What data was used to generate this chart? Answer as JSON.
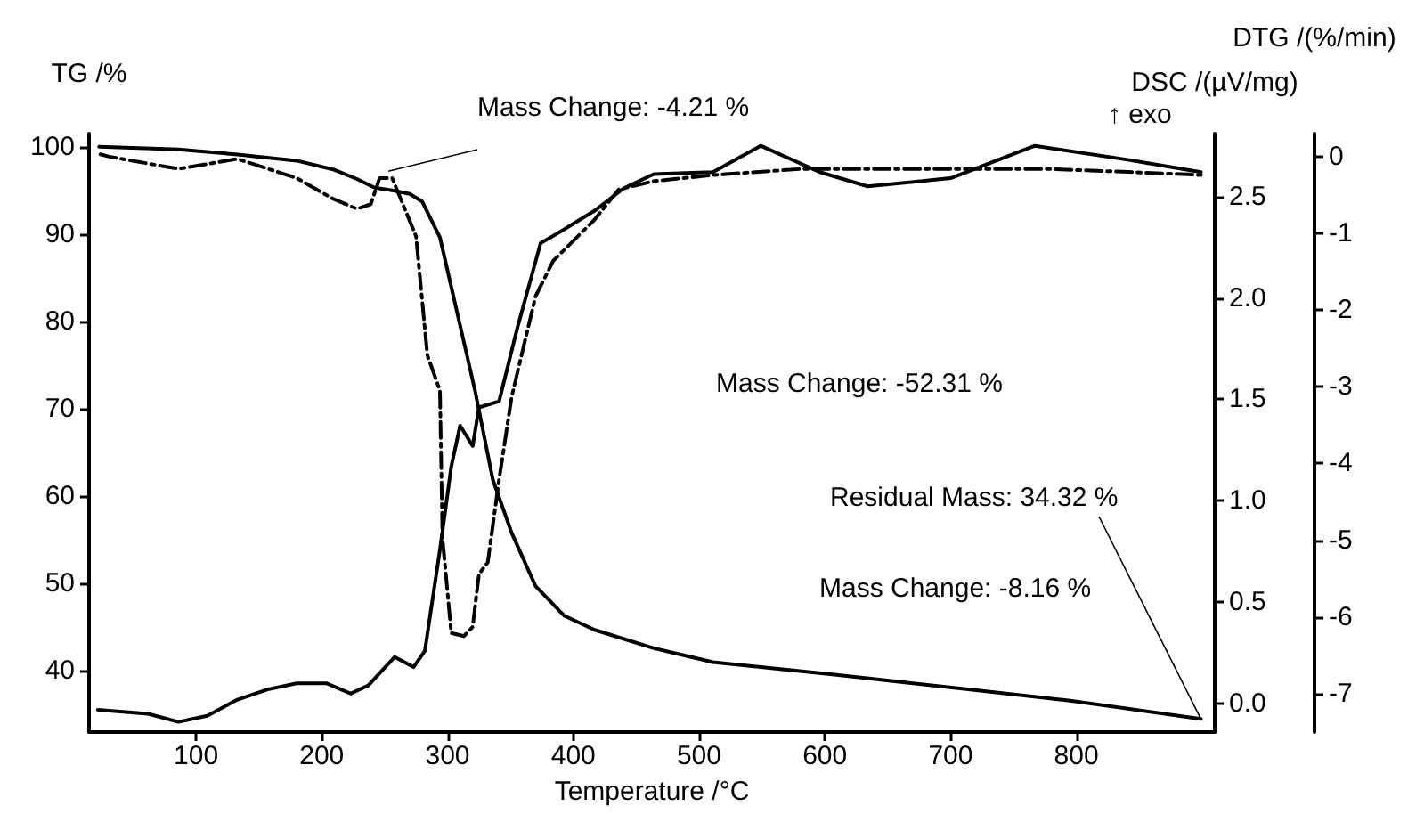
{
  "chart_data": {
    "type": "line",
    "xlabel": "Temperature /°C",
    "ylabel": "TG /%",
    "y2label": "DSC /(µV/mg)",
    "y3label": "DTG /(%/min)",
    "annotations": [
      {
        "text": "Mass Change: -4.21 %",
        "x": 253,
        "y": 97.2
      },
      "Mass Change: -52.31 %",
      {
        "text": "Residual Mass: 34.32 %",
        "x": 899,
        "y": 34.5
      },
      "Mass Change: -8.16 %",
      "↑ exo"
    ],
    "xlim": [
      15,
      910
    ],
    "xticks": [
      100,
      200,
      300,
      400,
      500,
      600,
      700,
      800
    ],
    "ylim": [
      33,
      101.5
    ],
    "yticks": [
      40,
      50,
      60,
      70,
      80,
      90,
      100
    ],
    "y2lim": [
      -0.14,
      2.81
    ],
    "y2ticks": [
      {
        "value": 0,
        "label": "0.0"
      },
      0.5,
      {
        "value": 1,
        "label": "1.0"
      },
      1.5,
      {
        "value": 2,
        "label": "2.0"
      },
      2.5
    ],
    "y3lim": [
      -7.5,
      0.3
    ],
    "y3ticks": [
      -7,
      -6,
      -5,
      -4,
      -3,
      -2,
      -1,
      0
    ],
    "series": [
      {
        "color": "#000000",
        "line_style": "solid",
        "x": [
          23,
          86,
          133,
          180,
          209,
          228,
          242,
          256,
          270,
          280,
          294,
          308,
          322,
          336,
          351,
          370,
          393,
          417,
          464,
          511,
          606,
          714,
          795,
          899
        ],
        "values": [
          100,
          99.7,
          99.1,
          98.4,
          97.4,
          96.3,
          95.3,
          95,
          94.6,
          93.7,
          89.6,
          80.8,
          72,
          61.9,
          55.8,
          49.7,
          46.3,
          44.7,
          42.6,
          41,
          39.6,
          37.9,
          36.6,
          34.5
        ]
      },
      {
        "color": "#000000",
        "line_style": "solid",
        "axis": "y2",
        "x": [
          22,
          62,
          86,
          109,
          133,
          157,
          180,
          204,
          223,
          237,
          258,
          273,
          282,
          294,
          303,
          310,
          320,
          325,
          341,
          355,
          374,
          388,
          417,
          440,
          464,
          511,
          549,
          596,
          634,
          700,
          767,
          842,
          899
        ],
        "values": [
          -0.03,
          -0.05,
          -0.09,
          -0.06,
          0.02,
          0.07,
          0.1,
          0.1,
          0.05,
          0.09,
          0.23,
          0.18,
          0.26,
          0.76,
          1.17,
          1.37,
          1.27,
          1.46,
          1.49,
          1.84,
          2.27,
          2.32,
          2.43,
          2.54,
          2.61,
          2.62,
          2.75,
          2.62,
          2.55,
          2.59,
          2.75,
          2.68,
          2.62
        ]
      },
      {
        "color": "#000000",
        "line_style": "dashed",
        "axis": "y3",
        "x": [
          24,
          31,
          86,
          133,
          180,
          209,
          228,
          239,
          246,
          256,
          275,
          284,
          294,
          296,
          303,
          313,
          320,
          325,
          332,
          341,
          351,
          370,
          384,
          417,
          436,
          464,
          511,
          582,
          653,
          714,
          776,
          842,
          899
        ],
        "values": [
          0.03,
          0,
          -0.16,
          -0.03,
          -0.28,
          -0.55,
          -0.68,
          -0.62,
          -0.28,
          -0.28,
          -1.04,
          -2.59,
          -3.05,
          -4.97,
          -6.21,
          -6.25,
          -6.13,
          -5.44,
          -5.29,
          -4.21,
          -3.13,
          -1.82,
          -1.36,
          -0.82,
          -0.43,
          -0.32,
          -0.24,
          -0.16,
          -0.16,
          -0.16,
          -0.16,
          -0.2,
          -0.24
        ]
      }
    ]
  }
}
